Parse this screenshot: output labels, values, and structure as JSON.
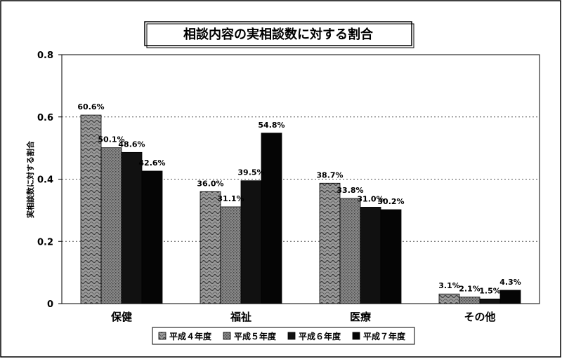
{
  "chart_data": {
    "type": "bar",
    "title": "相談内容の実相談数に対する割合",
    "ylabel": "実相談数に対する割合",
    "xlabel": "",
    "ylim": [
      0,
      0.8
    ],
    "yticks": [
      "0",
      "0.2",
      "0.4",
      "0.6",
      "0.8"
    ],
    "ytick_values": [
      0,
      0.2,
      0.4,
      0.6,
      0.8
    ],
    "grid": "horizontal dotted",
    "legend_position": "bottom",
    "categories": [
      "保健",
      "福祉",
      "医療",
      "その他"
    ],
    "series": [
      {
        "name": "平成４年度",
        "values": [
          0.606,
          0.36,
          0.387,
          0.031
        ],
        "labels": [
          "60.6%",
          "36.0%",
          "38.7%",
          "3.1%"
        ],
        "color": "#8c8c8c",
        "pattern": "wave"
      },
      {
        "name": "平成５年度",
        "values": [
          0.501,
          0.311,
          0.338,
          0.021
        ],
        "labels": [
          "50.1%",
          "31.1%",
          "33.8%",
          "2.1%"
        ],
        "color": "#7a7a7a",
        "pattern": "dots"
      },
      {
        "name": "平成６年度",
        "values": [
          0.486,
          0.395,
          0.31,
          0.015
        ],
        "labels": [
          "48.6%",
          "39.5%",
          "31.0%",
          "1.5%"
        ],
        "color": "#111111",
        "pattern": "solid"
      },
      {
        "name": "平成７年度",
        "values": [
          0.426,
          0.548,
          0.302,
          0.043
        ],
        "labels": [
          "42.6%",
          "54.8%",
          "30.2%",
          "4.3%"
        ],
        "color": "#050505",
        "pattern": "solid"
      }
    ]
  }
}
